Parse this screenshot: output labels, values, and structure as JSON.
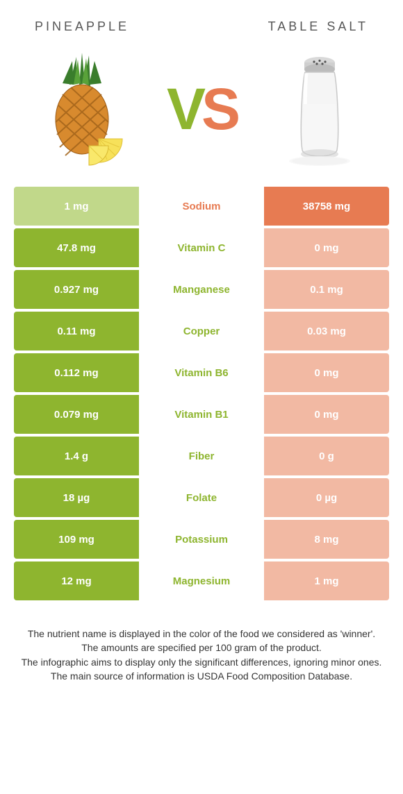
{
  "colors": {
    "left": "#8eb52f",
    "right": "#e77b52",
    "left_faded": "#c1d88a",
    "right_faded": "#f2b9a3",
    "nutrient_left": "#8eb52f",
    "nutrient_right": "#e77b52",
    "header_text": "#555555",
    "foot_text": "#333333"
  },
  "header": {
    "left": "PINEAPPLE",
    "right": "TABLE SALT"
  },
  "vs": {
    "v": "V",
    "s": "S"
  },
  "rows": [
    {
      "nutrient": "Sodium",
      "winner": "right",
      "left": "1 mg",
      "right": "38758 mg"
    },
    {
      "nutrient": "Vitamin C",
      "winner": "left",
      "left": "47.8 mg",
      "right": "0 mg"
    },
    {
      "nutrient": "Manganese",
      "winner": "left",
      "left": "0.927 mg",
      "right": "0.1 mg"
    },
    {
      "nutrient": "Copper",
      "winner": "left",
      "left": "0.11 mg",
      "right": "0.03 mg"
    },
    {
      "nutrient": "Vitamin B6",
      "winner": "left",
      "left": "0.112 mg",
      "right": "0 mg"
    },
    {
      "nutrient": "Vitamin B1",
      "winner": "left",
      "left": "0.079 mg",
      "right": "0 mg"
    },
    {
      "nutrient": "Fiber",
      "winner": "left",
      "left": "1.4 g",
      "right": "0 g"
    },
    {
      "nutrient": "Folate",
      "winner": "left",
      "left": "18 µg",
      "right": "0 µg"
    },
    {
      "nutrient": "Potassium",
      "winner": "left",
      "left": "109 mg",
      "right": "8 mg"
    },
    {
      "nutrient": "Magnesium",
      "winner": "left",
      "left": "12 mg",
      "right": "1 mg"
    }
  ],
  "footnotes": [
    "The nutrient name is displayed in the color of the food we considered as 'winner'.",
    "The amounts are specified per 100 gram of the product.",
    "The infographic aims to display only the significant differences, ignoring minor ones.",
    "The main source of information is USDA Food Composition Database."
  ]
}
